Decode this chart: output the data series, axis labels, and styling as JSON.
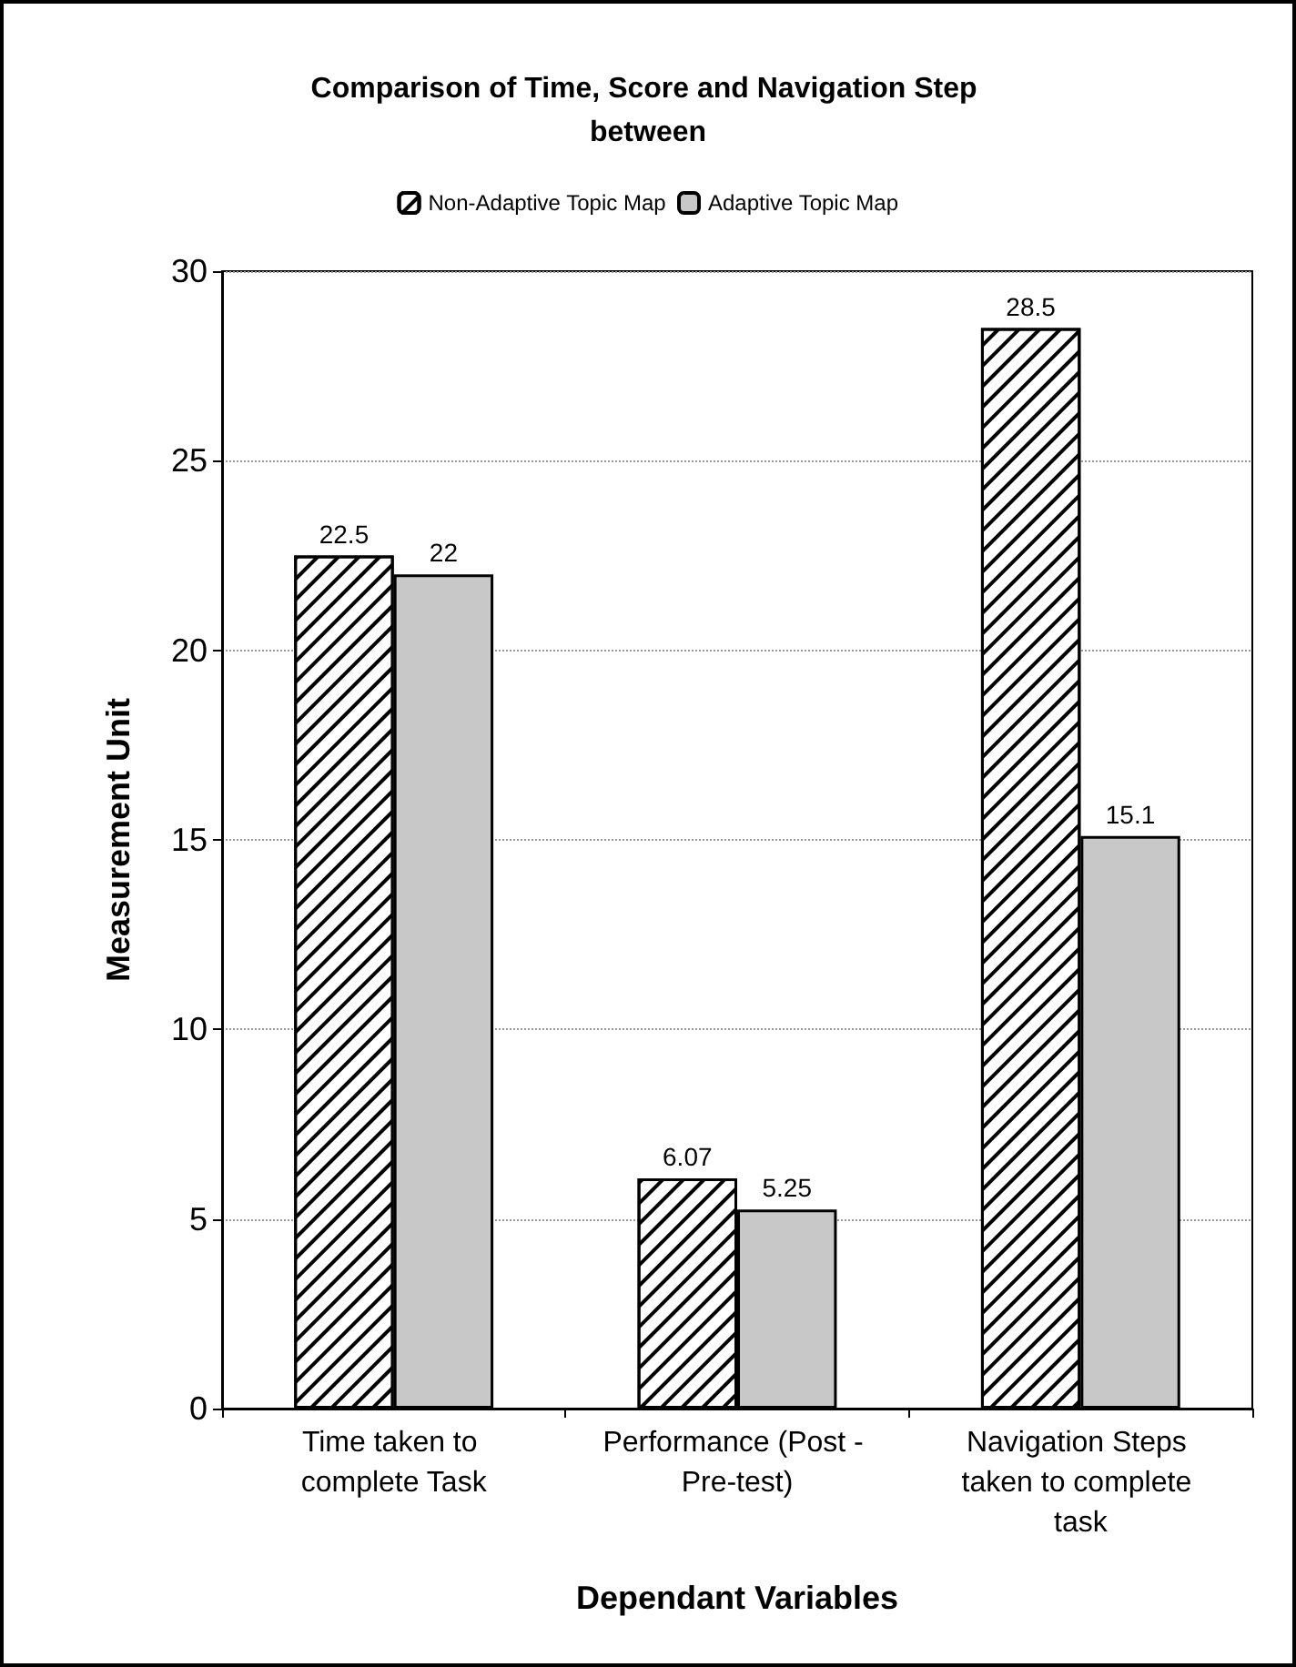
{
  "chart_data": {
    "type": "bar",
    "title": "Comparison of Time, Score and Navigation Step between",
    "xlabel": "Dependant Variables",
    "ylabel": "Measurement Unit",
    "categories": [
      "Time taken to complete Task",
      "Performance (Post - Pre-test)",
      "Navigation Steps taken to complete task"
    ],
    "series": [
      {
        "name": "Non-Adaptive Topic Map",
        "color": "#ffffff",
        "values": [
          22.5,
          6.07,
          28.5
        ]
      },
      {
        "name": "Adaptive Topic Map",
        "color": "#c8c8c8",
        "values": [
          22,
          5.25,
          15.1
        ]
      }
    ],
    "ylim": [
      0,
      30
    ],
    "yticks": [
      0,
      5,
      10,
      15,
      20,
      25,
      30
    ],
    "grid": "y",
    "legend": "top",
    "data_labels": true
  }
}
